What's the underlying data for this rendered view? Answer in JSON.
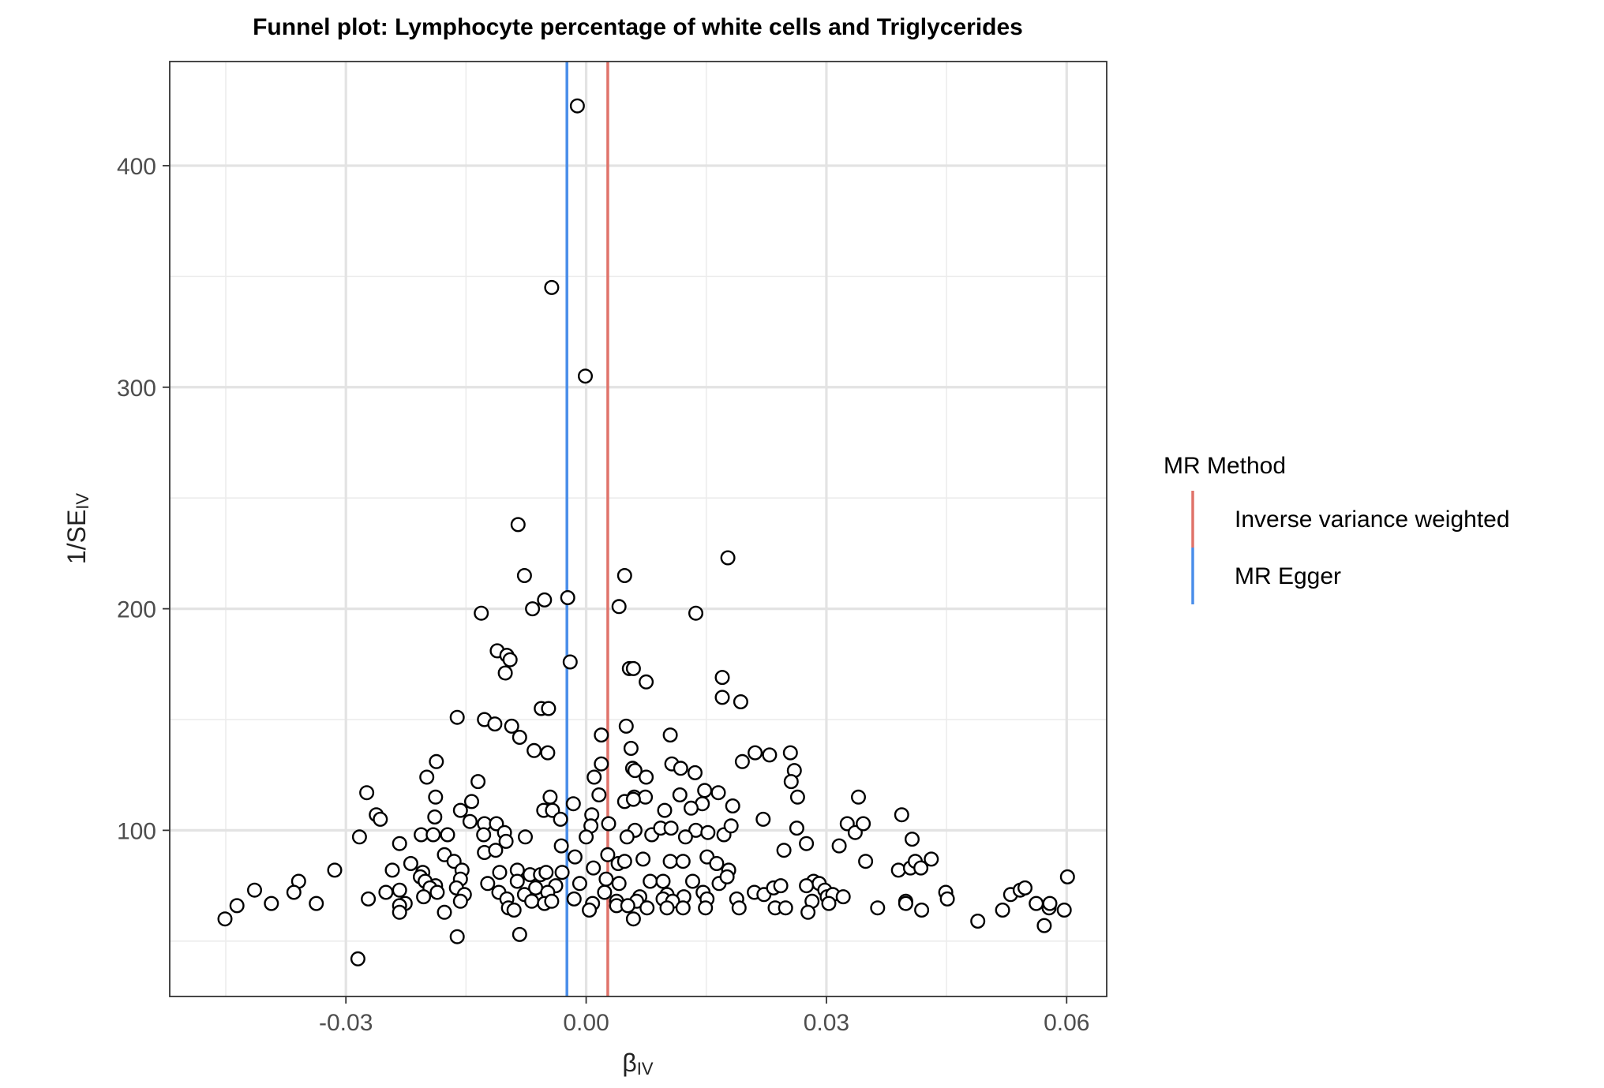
{
  "chart_data": {
    "type": "scatter",
    "title": "Funnel plot: Lymphocyte percentage of white cells and Triglycerides",
    "xlabel": {
      "main": "β",
      "sub": "IV"
    },
    "ylabel": {
      "main": "1/SE",
      "sub": "IV"
    },
    "xlim": [
      -0.052,
      0.065
    ],
    "ylim": [
      25,
      447
    ],
    "x_ticks": [
      -0.03,
      0.0,
      0.03,
      0.06
    ],
    "x_tick_labels": [
      "-0.03",
      "0.00",
      "0.03",
      "0.06"
    ],
    "y_ticks": [
      100,
      200,
      300,
      400
    ],
    "y_tick_labels": [
      "100",
      "200",
      "300",
      "400"
    ],
    "grid": true,
    "legend": {
      "title": "MR Method",
      "position": "right",
      "entries": [
        {
          "label": "Inverse variance weighted",
          "color": "#E0736A"
        },
        {
          "label": "MR Egger",
          "color": "#4A8EEA"
        }
      ]
    },
    "vlines": [
      {
        "method": "Inverse variance weighted",
        "x": 0.0027,
        "color": "#E0736A"
      },
      {
        "method": "MR Egger",
        "x": -0.0024,
        "color": "#4A8EEA"
      }
    ],
    "points": [
      [
        -0.0011,
        427
      ],
      [
        -0.0043,
        345
      ],
      [
        -0.0001,
        305
      ],
      [
        -0.0085,
        238
      ],
      [
        0.0177,
        223
      ],
      [
        -0.0077,
        215
      ],
      [
        0.0048,
        215
      ],
      [
        -0.0052,
        204
      ],
      [
        -0.0023,
        205
      ],
      [
        -0.0067,
        200
      ],
      [
        0.0041,
        201
      ],
      [
        -0.0131,
        198
      ],
      [
        0.0137,
        198
      ],
      [
        -0.0111,
        181
      ],
      [
        -0.0099,
        179
      ],
      [
        -0.0095,
        177
      ],
      [
        -0.0101,
        171
      ],
      [
        -0.002,
        176
      ],
      [
        0.0054,
        173
      ],
      [
        0.0059,
        173
      ],
      [
        0.0075,
        167
      ],
      [
        0.017,
        169
      ],
      [
        0.017,
        160
      ],
      [
        0.0193,
        158
      ],
      [
        -0.0056,
        155
      ],
      [
        -0.0047,
        155
      ],
      [
        -0.0161,
        151
      ],
      [
        -0.0127,
        150
      ],
      [
        -0.0114,
        148
      ],
      [
        -0.0093,
        147
      ],
      [
        0.005,
        147
      ],
      [
        0.0019,
        143
      ],
      [
        0.0105,
        143
      ],
      [
        -0.0083,
        142
      ],
      [
        -0.0065,
        136
      ],
      [
        -0.0048,
        135
      ],
      [
        0.0056,
        137
      ],
      [
        0.0211,
        135
      ],
      [
        0.0229,
        134
      ],
      [
        0.0255,
        135
      ],
      [
        -0.0187,
        131
      ],
      [
        0.0019,
        130
      ],
      [
        0.0058,
        128
      ],
      [
        0.0107,
        130
      ],
      [
        0.0118,
        128
      ],
      [
        0.0136,
        126
      ],
      [
        0.0195,
        131
      ],
      [
        0.026,
        127
      ],
      [
        0.0061,
        127
      ],
      [
        0.0075,
        124
      ],
      [
        0.001,
        124
      ],
      [
        -0.0199,
        124
      ],
      [
        -0.0135,
        122
      ],
      [
        0.0256,
        122
      ],
      [
        -0.0274,
        117
      ],
      [
        -0.0188,
        115
      ],
      [
        -0.0045,
        115
      ],
      [
        0.0016,
        116
      ],
      [
        0.006,
        115
      ],
      [
        0.0074,
        115
      ],
      [
        0.0117,
        116
      ],
      [
        0.0148,
        118
      ],
      [
        0.0165,
        117
      ],
      [
        0.0264,
        115
      ],
      [
        0.034,
        115
      ],
      [
        -0.0143,
        113
      ],
      [
        -0.0016,
        112
      ],
      [
        0.0048,
        113
      ],
      [
        0.0059,
        114
      ],
      [
        0.0145,
        112
      ],
      [
        0.0183,
        111
      ],
      [
        -0.0262,
        107
      ],
      [
        -0.0257,
        105
      ],
      [
        -0.0189,
        106
      ],
      [
        -0.0157,
        109
      ],
      [
        -0.0053,
        109
      ],
      [
        -0.0042,
        109
      ],
      [
        -0.0032,
        105
      ],
      [
        0.0007,
        107
      ],
      [
        0.0098,
        109
      ],
      [
        0.0131,
        110
      ],
      [
        0.0221,
        105
      ],
      [
        0.0394,
        107
      ],
      [
        -0.0145,
        104
      ],
      [
        -0.0127,
        103
      ],
      [
        -0.0112,
        103
      ],
      [
        0.0006,
        102
      ],
      [
        0.0028,
        103
      ],
      [
        0.0061,
        100
      ],
      [
        0.0082,
        98
      ],
      [
        0.0093,
        101
      ],
      [
        0.0106,
        101
      ],
      [
        0.0137,
        100
      ],
      [
        0.0152,
        99
      ],
      [
        0.0172,
        98
      ],
      [
        0.0181,
        102
      ],
      [
        0.0263,
        101
      ],
      [
        0.0326,
        103
      ],
      [
        0.0336,
        99
      ],
      [
        0.0346,
        103
      ],
      [
        -0.0283,
        97
      ],
      [
        -0.0206,
        98
      ],
      [
        -0.0191,
        98
      ],
      [
        -0.0173,
        98
      ],
      [
        -0.0128,
        98
      ],
      [
        -0.0102,
        99
      ],
      [
        -0.01,
        95
      ],
      [
        -0.0076,
        97
      ],
      [
        0.0,
        97
      ],
      [
        0.0051,
        97
      ],
      [
        0.0124,
        97
      ],
      [
        0.0407,
        96
      ],
      [
        -0.0233,
        94
      ],
      [
        -0.0127,
        90
      ],
      [
        -0.0113,
        91
      ],
      [
        -0.0031,
        93
      ],
      [
        -0.0014,
        88
      ],
      [
        0.0027,
        89
      ],
      [
        0.0247,
        91
      ],
      [
        0.0275,
        94
      ],
      [
        0.0316,
        93
      ],
      [
        -0.0177,
        89
      ],
      [
        -0.0165,
        86
      ],
      [
        -0.0219,
        85
      ],
      [
        -0.0242,
        82
      ],
      [
        -0.0314,
        82
      ],
      [
        -0.0155,
        82
      ],
      [
        -0.0108,
        81
      ],
      [
        -0.0086,
        82
      ],
      [
        -0.007,
        80
      ],
      [
        -0.0057,
        80
      ],
      [
        -0.005,
        81
      ],
      [
        -0.003,
        81
      ],
      [
        0.0009,
        83
      ],
      [
        0.004,
        85
      ],
      [
        0.0048,
        86
      ],
      [
        0.0071,
        87
      ],
      [
        0.0105,
        86
      ],
      [
        0.0121,
        86
      ],
      [
        0.0151,
        88
      ],
      [
        0.0163,
        85
      ],
      [
        0.0178,
        82
      ],
      [
        0.0349,
        86
      ],
      [
        0.039,
        82
      ],
      [
        0.0405,
        83
      ],
      [
        0.0411,
        86
      ],
      [
        0.0418,
        83
      ],
      [
        0.0431,
        87
      ],
      [
        0.0601,
        79
      ],
      [
        -0.0204,
        81
      ],
      [
        -0.0207,
        79
      ],
      [
        -0.0201,
        77
      ],
      [
        -0.0188,
        75
      ],
      [
        -0.0157,
        78
      ],
      [
        -0.0123,
        76
      ],
      [
        -0.0086,
        77
      ],
      [
        -0.0063,
        74
      ],
      [
        -0.0038,
        75
      ],
      [
        -0.0008,
        76
      ],
      [
        0.0025,
        78
      ],
      [
        0.0041,
        76
      ],
      [
        0.008,
        77
      ],
      [
        0.0096,
        77
      ],
      [
        0.0133,
        77
      ],
      [
        0.0166,
        76
      ],
      [
        0.0176,
        79
      ],
      [
        0.0284,
        77
      ],
      [
        0.0275,
        75
      ],
      [
        0.0291,
        76
      ],
      [
        0.0298,
        73
      ],
      [
        -0.0359,
        77
      ],
      [
        -0.0414,
        73
      ],
      [
        -0.0365,
        72
      ],
      [
        -0.025,
        72
      ],
      [
        -0.0233,
        73
      ],
      [
        -0.0195,
        74
      ],
      [
        -0.0186,
        72
      ],
      [
        -0.0162,
        74
      ],
      [
        -0.0152,
        71
      ],
      [
        -0.0109,
        72
      ],
      [
        -0.0077,
        71
      ],
      [
        -0.0048,
        72
      ],
      [
        0.0023,
        72
      ],
      [
        0.0067,
        70
      ],
      [
        0.0101,
        71
      ],
      [
        0.0122,
        70
      ],
      [
        0.0146,
        72
      ],
      [
        0.021,
        72
      ],
      [
        0.0222,
        71
      ],
      [
        0.0234,
        74
      ],
      [
        0.0243,
        75
      ],
      [
        0.0301,
        70
      ],
      [
        0.0308,
        71
      ],
      [
        0.0321,
        70
      ],
      [
        0.0449,
        72
      ],
      [
        0.053,
        71
      ],
      [
        0.0542,
        73
      ],
      [
        0.0548,
        74
      ],
      [
        -0.0272,
        69
      ],
      [
        -0.0226,
        67
      ],
      [
        -0.0203,
        70
      ],
      [
        -0.0157,
        68
      ],
      [
        -0.0099,
        69
      ],
      [
        -0.0068,
        68
      ],
      [
        -0.0052,
        67
      ],
      [
        -0.0043,
        68
      ],
      [
        -0.0015,
        69
      ],
      [
        0.0008,
        67
      ],
      [
        0.0038,
        68
      ],
      [
        0.0063,
        68
      ],
      [
        0.0096,
        69
      ],
      [
        0.0108,
        68
      ],
      [
        0.0151,
        69
      ],
      [
        0.0188,
        69
      ],
      [
        0.0282,
        68
      ],
      [
        0.0303,
        67
      ],
      [
        0.0399,
        68
      ],
      [
        0.0451,
        69
      ],
      [
        -0.0337,
        67
      ],
      [
        -0.0393,
        67
      ],
      [
        -0.0436,
        66
      ],
      [
        -0.0233,
        66
      ],
      [
        -0.0177,
        63
      ],
      [
        -0.0097,
        65
      ],
      [
        -0.009,
        64
      ],
      [
        0.0004,
        64
      ],
      [
        0.0038,
        66
      ],
      [
        0.0052,
        66
      ],
      [
        0.0076,
        65
      ],
      [
        0.0101,
        65
      ],
      [
        0.0121,
        65
      ],
      [
        0.0149,
        65
      ],
      [
        0.0191,
        65
      ],
      [
        0.0236,
        65
      ],
      [
        0.0249,
        65
      ],
      [
        0.0364,
        65
      ],
      [
        0.0399,
        67
      ],
      [
        0.0419,
        64
      ],
      [
        0.052,
        64
      ],
      [
        0.0562,
        67
      ],
      [
        0.0578,
        65
      ],
      [
        0.0579,
        67
      ],
      [
        0.0597,
        64
      ],
      [
        -0.0233,
        63
      ],
      [
        -0.0451,
        60
      ],
      [
        0.0059,
        60
      ],
      [
        0.0277,
        63
      ],
      [
        0.0489,
        59
      ],
      [
        0.0572,
        57
      ],
      [
        -0.0161,
        52
      ],
      [
        -0.0083,
        53
      ],
      [
        -0.0285,
        42
      ]
    ]
  }
}
